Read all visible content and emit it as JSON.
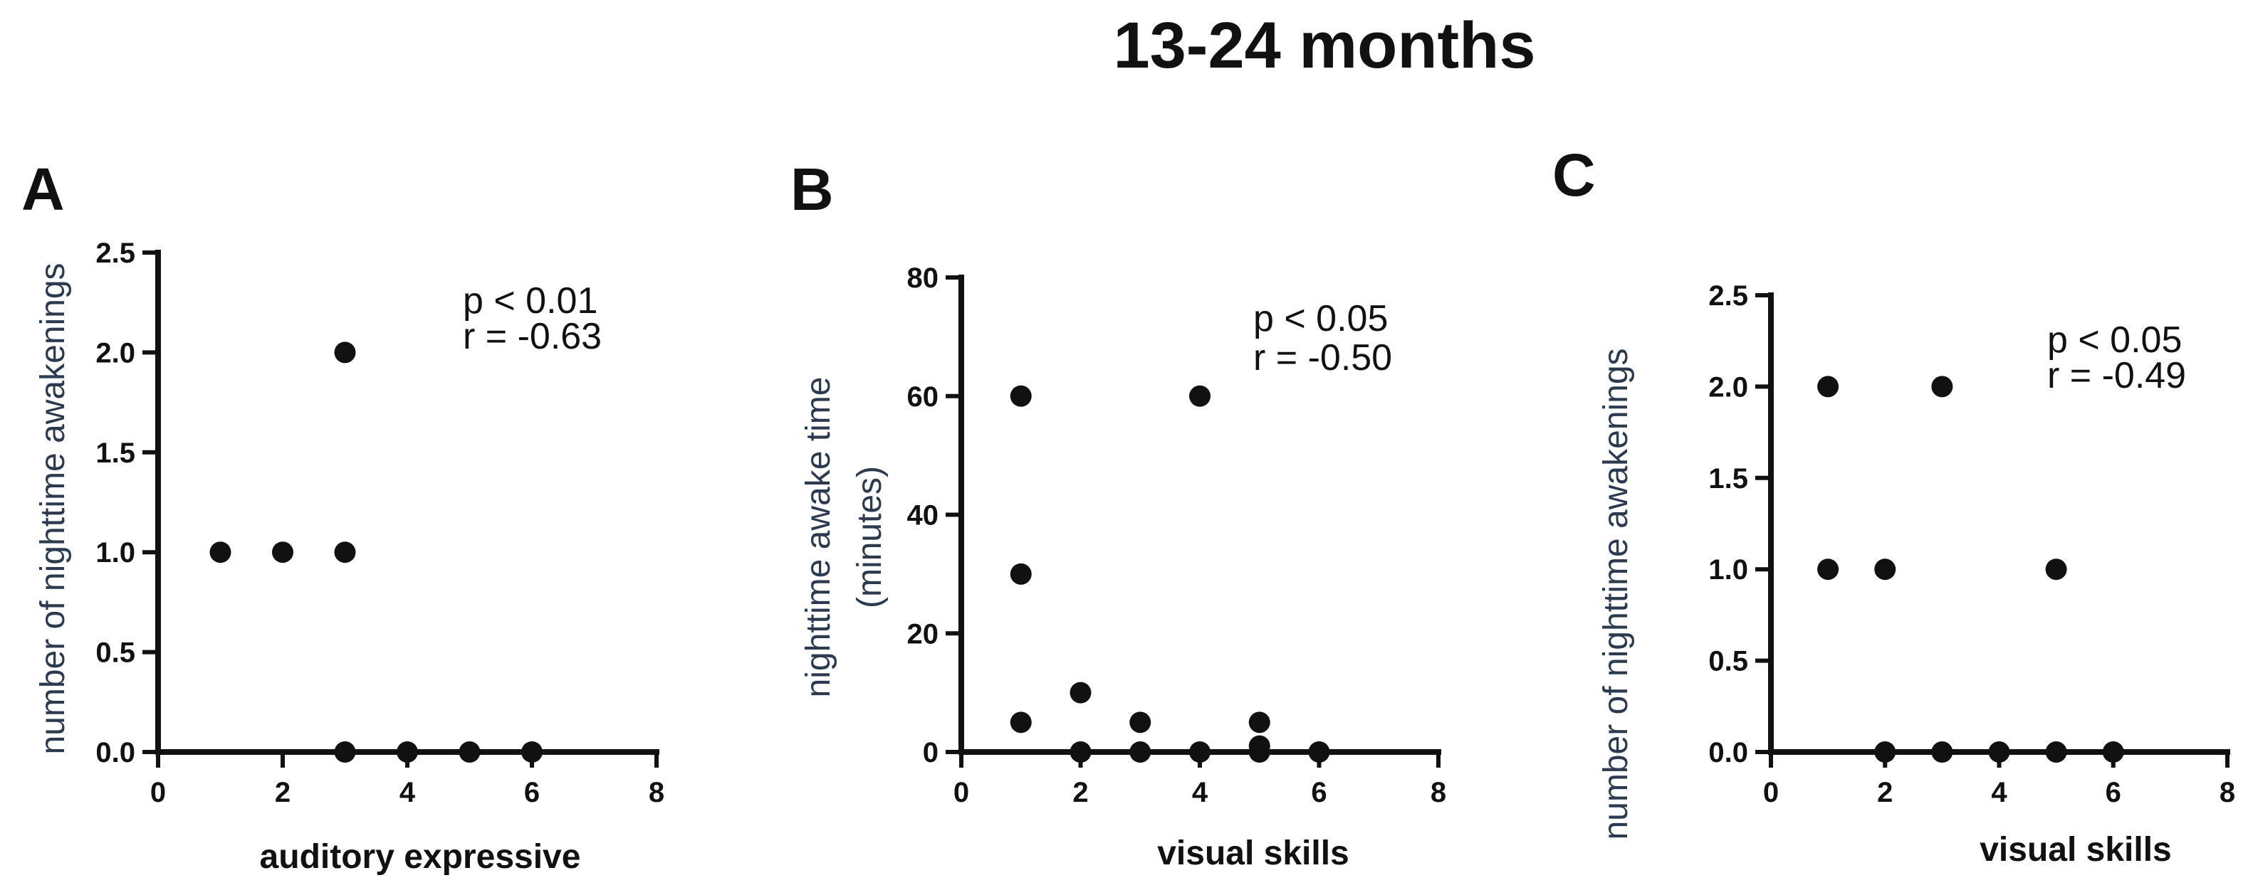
{
  "figure_title": "13-24 months",
  "chart_data": [
    {
      "panel": "A",
      "type": "scatter",
      "title": "",
      "xlabel": "auditory expressive",
      "ylabel": "number of nighttime awakenings",
      "xlim": [
        0,
        8
      ],
      "ylim": [
        0,
        2.5
      ],
      "x_ticks": [
        0,
        2,
        4,
        6,
        8
      ],
      "y_ticks": [
        0,
        0.5,
        1.0,
        1.5,
        2.0,
        2.5
      ],
      "x_tick_labels": [
        "0",
        "2",
        "4",
        "6",
        "8"
      ],
      "y_tick_labels": [
        "0.0",
        "0.5",
        "1.0",
        "1.5",
        "2.0",
        "2.5"
      ],
      "points": [
        {
          "x": 1,
          "y": 1
        },
        {
          "x": 2,
          "y": 1
        },
        {
          "x": 3,
          "y": 1
        },
        {
          "x": 3,
          "y": 2
        },
        {
          "x": 3,
          "y": 0
        },
        {
          "x": 4,
          "y": 0
        },
        {
          "x": 5,
          "y": 0
        },
        {
          "x": 6,
          "y": 0
        }
      ],
      "annotation": [
        "p < 0.01",
        "r = -0.63"
      ]
    },
    {
      "panel": "B",
      "type": "scatter",
      "title": "",
      "xlabel": "visual skills",
      "ylabel": [
        "nighttime awake time",
        "(minutes)"
      ],
      "xlim": [
        0,
        8
      ],
      "ylim": [
        0,
        80
      ],
      "x_ticks": [
        0,
        2,
        4,
        6,
        8
      ],
      "y_ticks": [
        0,
        20,
        40,
        60,
        80
      ],
      "x_tick_labels": [
        "0",
        "2",
        "4",
        "6",
        "8"
      ],
      "y_tick_labels": [
        "0",
        "20",
        "40",
        "60",
        "80"
      ],
      "points": [
        {
          "x": 1,
          "y": 60
        },
        {
          "x": 1,
          "y": 30
        },
        {
          "x": 1,
          "y": 5
        },
        {
          "x": 2,
          "y": 10
        },
        {
          "x": 2,
          "y": 0
        },
        {
          "x": 3,
          "y": 5
        },
        {
          "x": 3,
          "y": 0
        },
        {
          "x": 4,
          "y": 60
        },
        {
          "x": 4,
          "y": 0
        },
        {
          "x": 5,
          "y": 5
        },
        {
          "x": 5,
          "y": 1
        },
        {
          "x": 5,
          "y": 0
        },
        {
          "x": 6,
          "y": 0
        }
      ],
      "annotation": [
        "p < 0.05",
        "r = -0.50"
      ]
    },
    {
      "panel": "C",
      "type": "scatter",
      "title": "",
      "xlabel": "visual skills",
      "ylabel": "number of nighttime awakenings",
      "xlim": [
        0,
        8
      ],
      "ylim": [
        0,
        2.5
      ],
      "x_ticks": [
        0,
        2,
        4,
        6,
        8
      ],
      "y_ticks": [
        0,
        0.5,
        1.0,
        1.5,
        2.0,
        2.5
      ],
      "x_tick_labels": [
        "0",
        "2",
        "4",
        "6",
        "8"
      ],
      "y_tick_labels": [
        "0.0",
        "0.5",
        "1.0",
        "1.5",
        "2.0",
        "2.5"
      ],
      "points": [
        {
          "x": 1,
          "y": 2
        },
        {
          "x": 1,
          "y": 1
        },
        {
          "x": 2,
          "y": 1
        },
        {
          "x": 3,
          "y": 2
        },
        {
          "x": 5,
          "y": 1
        },
        {
          "x": 2,
          "y": 0
        },
        {
          "x": 3,
          "y": 0
        },
        {
          "x": 4,
          "y": 0
        },
        {
          "x": 5,
          "y": 0
        },
        {
          "x": 6,
          "y": 0
        }
      ],
      "annotation": [
        "p < 0.05",
        "r = -0.49"
      ]
    }
  ]
}
